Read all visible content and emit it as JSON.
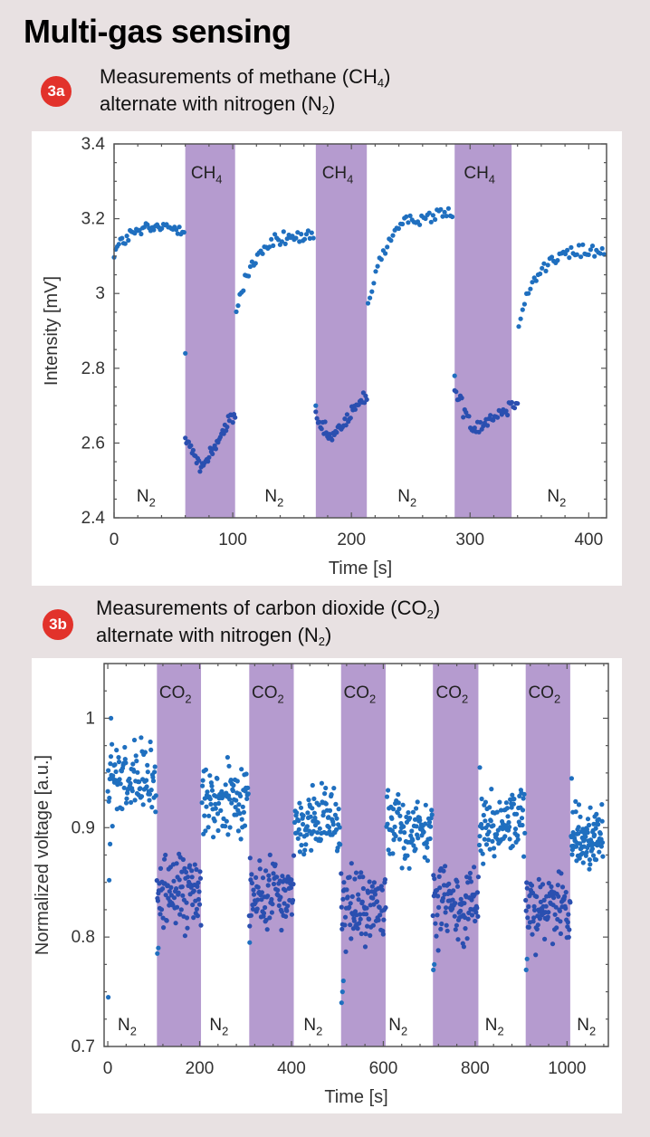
{
  "title": "Multi-gas sensing",
  "sections": [
    {
      "badge": "3a",
      "line1": "Measurements of methane (CH",
      "line1_sub": "4",
      "line1_end": ")",
      "line2": "alternate with nitrogen (N",
      "line2_sub": "2",
      "line2_end": ")"
    },
    {
      "badge": "3b",
      "line1": "Measurements of carbon dioxide  (CO",
      "line1_sub": "2",
      "line1_end": ")",
      "line2": "alternate with nitrogen (N",
      "line2_sub": "2",
      "line2_end": ")"
    }
  ],
  "colors": {
    "background": "#e8e1e2",
    "band": "#b59bcf",
    "points_outside": "#1f6fbf",
    "points_inside": "#2a4fb0",
    "badge": "#e2322b"
  },
  "chart_data": [
    {
      "type": "scatter",
      "title": "Measurements of methane (CH4) alternate with nitrogen (N2)",
      "xlabel": "Time [s]",
      "ylabel": "Intensity [mV]",
      "xlim": [
        0,
        415
      ],
      "ylim": [
        2.4,
        3.4
      ],
      "xticks": [
        0,
        100,
        200,
        300,
        400
      ],
      "xtick_labels": [
        "0",
        "100",
        "200",
        "300",
        "400"
      ],
      "yticks": [
        2.4,
        2.6,
        2.8,
        3.0,
        3.2,
        3.4
      ],
      "ytick_labels": [
        "2.4",
        "2.6",
        "2.8",
        "3",
        "3.2",
        "3.4"
      ],
      "grid": false,
      "bands": [
        {
          "x0": 60,
          "x1": 102,
          "label": "CH",
          "sub": "4"
        },
        {
          "x0": 170,
          "x1": 213,
          "label": "CH",
          "sub": "4"
        },
        {
          "x0": 287,
          "x1": 335,
          "label": "CH",
          "sub": "4"
        }
      ],
      "gap_labels": [
        {
          "x": 30,
          "label": "N",
          "sub": "2"
        },
        {
          "x": 138,
          "label": "N",
          "sub": "2"
        },
        {
          "x": 250,
          "label": "N",
          "sub": "2"
        },
        {
          "x": 376,
          "label": "N",
          "sub": "2"
        }
      ],
      "segments": [
        {
          "x0": 0,
          "x1": 59,
          "kind": "rise",
          "start": 3.11,
          "end": 3.17,
          "peak": 3.18,
          "noise": 0.02
        },
        {
          "x0": 60,
          "x1": 102,
          "kind": "dip",
          "start": 2.62,
          "min": 2.53,
          "end": 2.68,
          "noise": 0.02,
          "outlier": 2.84
        },
        {
          "x0": 103,
          "x1": 168,
          "kind": "rise",
          "start": 2.95,
          "end": 3.14,
          "peak": 3.16,
          "noise": 0.02
        },
        {
          "x0": 170,
          "x1": 213,
          "kind": "dip",
          "start": 2.66,
          "min": 2.61,
          "end": 2.73,
          "noise": 0.02,
          "outlier": 2.7
        },
        {
          "x0": 214,
          "x1": 285,
          "kind": "rise",
          "start": 2.97,
          "end": 3.21,
          "peak": 3.22,
          "noise": 0.02
        },
        {
          "x0": 287,
          "x1": 340,
          "kind": "dip",
          "start": 2.74,
          "min": 2.64,
          "end": 2.71,
          "noise": 0.02,
          "outlier": 2.78
        },
        {
          "x0": 341,
          "x1": 413,
          "kind": "rise",
          "start": 2.93,
          "end": 3.11,
          "peak": 3.12,
          "noise": 0.02
        }
      ],
      "n_points_per_segment": 45
    },
    {
      "type": "scatter",
      "title": "Measurements of carbon dioxide (CO2) alternate with nitrogen (N2)",
      "xlabel": "Time [s]",
      "ylabel": "Normalized voltage [a.u.]",
      "xlim": [
        -8,
        1090
      ],
      "ylim": [
        0.7,
        1.05
      ],
      "xticks": [
        0,
        200,
        400,
        600,
        800,
        1000
      ],
      "xtick_labels": [
        "0",
        "200",
        "400",
        "600",
        "800",
        "1000"
      ],
      "yticks": [
        0.7,
        0.8,
        0.9,
        1.0
      ],
      "ytick_labels": [
        "0.7",
        "0.8",
        "0.9",
        "1"
      ],
      "grid": false,
      "bands": [
        {
          "x0": 107,
          "x1": 203,
          "label": "CO",
          "sub": "2"
        },
        {
          "x0": 308,
          "x1": 405,
          "label": "CO",
          "sub": "2"
        },
        {
          "x0": 508,
          "x1": 605,
          "label": "CO",
          "sub": "2"
        },
        {
          "x0": 708,
          "x1": 807,
          "label": "CO",
          "sub": "2"
        },
        {
          "x0": 910,
          "x1": 1007,
          "label": "CO",
          "sub": "2"
        }
      ],
      "gap_labels": [
        {
          "x": 50,
          "label": "N",
          "sub": "2"
        },
        {
          "x": 250,
          "label": "N",
          "sub": "2"
        },
        {
          "x": 455,
          "label": "N",
          "sub": "2"
        },
        {
          "x": 640,
          "label": "N",
          "sub": "2"
        },
        {
          "x": 850,
          "label": "N",
          "sub": "2"
        },
        {
          "x": 1050,
          "label": "N",
          "sub": "2"
        }
      ],
      "segments": [
        {
          "x0": 0,
          "x1": 105,
          "level": 0.94,
          "noise": 0.025,
          "outliers": [
            0.745,
            0.852,
            0.885,
            1.0
          ]
        },
        {
          "x0": 107,
          "x1": 203,
          "level": 0.84,
          "noise": 0.025,
          "outliers": [
            0.785,
            0.79
          ]
        },
        {
          "x0": 205,
          "x1": 306,
          "level": 0.925,
          "noise": 0.022,
          "outliers": []
        },
        {
          "x0": 308,
          "x1": 405,
          "level": 0.84,
          "noise": 0.022,
          "outliers": [
            0.795
          ]
        },
        {
          "x0": 407,
          "x1": 506,
          "level": 0.905,
          "noise": 0.022,
          "outliers": []
        },
        {
          "x0": 508,
          "x1": 605,
          "level": 0.83,
          "noise": 0.024,
          "outliers": [
            0.74,
            0.75,
            0.76
          ]
        },
        {
          "x0": 607,
          "x1": 706,
          "level": 0.9,
          "noise": 0.022,
          "outliers": []
        },
        {
          "x0": 708,
          "x1": 807,
          "level": 0.83,
          "noise": 0.024,
          "outliers": [
            0.77,
            0.775
          ]
        },
        {
          "x0": 809,
          "x1": 908,
          "level": 0.9,
          "noise": 0.022,
          "outliers": [
            0.955
          ]
        },
        {
          "x0": 910,
          "x1": 1007,
          "level": 0.83,
          "noise": 0.022,
          "outliers": [
            0.77,
            0.78
          ]
        },
        {
          "x0": 1009,
          "x1": 1078,
          "level": 0.89,
          "noise": 0.022,
          "outliers": [
            0.945
          ]
        }
      ],
      "n_points_per_segment": 95
    }
  ]
}
